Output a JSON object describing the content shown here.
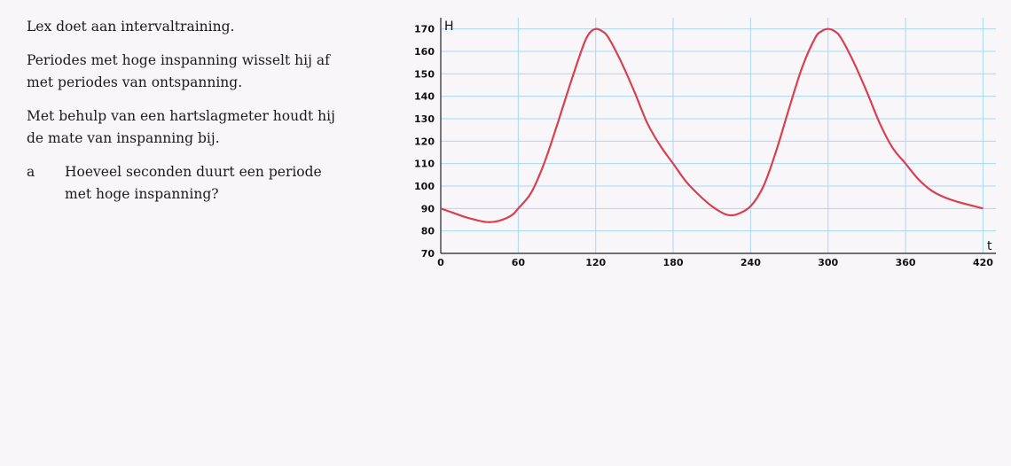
{
  "text": {
    "p1": "Lex doet aan intervaltraining.",
    "p2": "Periodes met hoge inspanning wisselt hij af met periodes van ontspanning.",
    "p3": "Met behulp van een hartslagmeter houdt hij de mate van inspanning bij.",
    "question_letter": "a",
    "question": "Hoeveel seconden duurt een periode met hoge inspanning?"
  },
  "chart_data": {
    "type": "line",
    "title": "",
    "xlabel": "t",
    "ylabel": "H",
    "xlim": [
      0,
      430
    ],
    "ylim": [
      70,
      175
    ],
    "xticks": [
      0,
      60,
      120,
      180,
      240,
      300,
      360,
      420
    ],
    "yticks": [
      70,
      80,
      90,
      100,
      110,
      120,
      130,
      140,
      150,
      160,
      170
    ],
    "grid": true,
    "line_color": "#d8404f",
    "grid_color": "#a8d8f4",
    "series": [
      {
        "x": [
          0,
          10,
          20,
          35,
          45,
          55,
          60,
          70,
          80,
          90,
          100,
          110,
          115,
          120,
          125,
          130,
          140,
          150,
          160,
          170,
          180,
          190,
          200,
          210,
          220,
          225,
          230,
          240,
          250,
          260,
          270,
          280,
          290,
          295,
          300,
          305,
          310,
          320,
          330,
          340,
          350,
          360,
          370,
          380,
          390,
          400,
          410,
          420
        ],
        "y": [
          90,
          88,
          86,
          84,
          84.5,
          87,
          90,
          97,
          110,
          127,
          145,
          162,
          168,
          170,
          169,
          166,
          155,
          142,
          128,
          118,
          110,
          102,
          96,
          91,
          87.5,
          87,
          87.5,
          91,
          100,
          116,
          135,
          153,
          166,
          169,
          170,
          169,
          166,
          155,
          142,
          128,
          117,
          110,
          103,
          98,
          95,
          93,
          91.5,
          90
        ]
      }
    ]
  }
}
